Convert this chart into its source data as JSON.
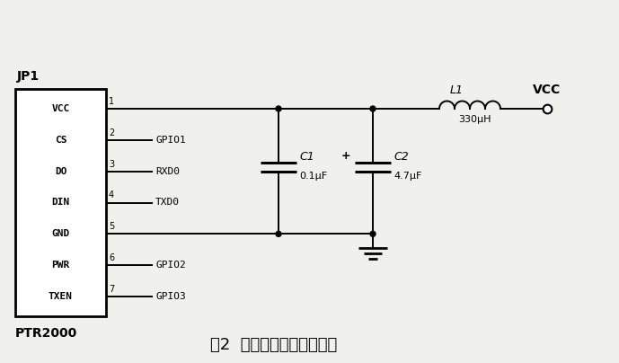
{
  "title": "图2  无线通信模块接口电路",
  "bg_color": "#f0f0ec",
  "line_color": "#000000",
  "text_color": "#000000",
  "chip_label": "JP1",
  "chip_bottom_label": "PTR2000",
  "chip_pins_left": [
    "VCC",
    "CS",
    "DO",
    "DIN",
    "GND",
    "PWR",
    "TXEN"
  ],
  "chip_pin_numbers": [
    "1",
    "2",
    "3",
    "4",
    "5",
    "6",
    "7"
  ],
  "gpio_labels": [
    "GPIO1",
    "RXD0",
    "TXD0",
    "GPIO2",
    "GPIO3"
  ],
  "gpio_pin_idx": [
    1,
    2,
    3,
    5,
    6
  ],
  "L1_label": "L1",
  "L1_val": "330μH",
  "C1_label": "C1",
  "C1_val": "0.1μF",
  "C2_label": "C2",
  "C2_val": "4.7μF",
  "VCC_label": "VCC"
}
